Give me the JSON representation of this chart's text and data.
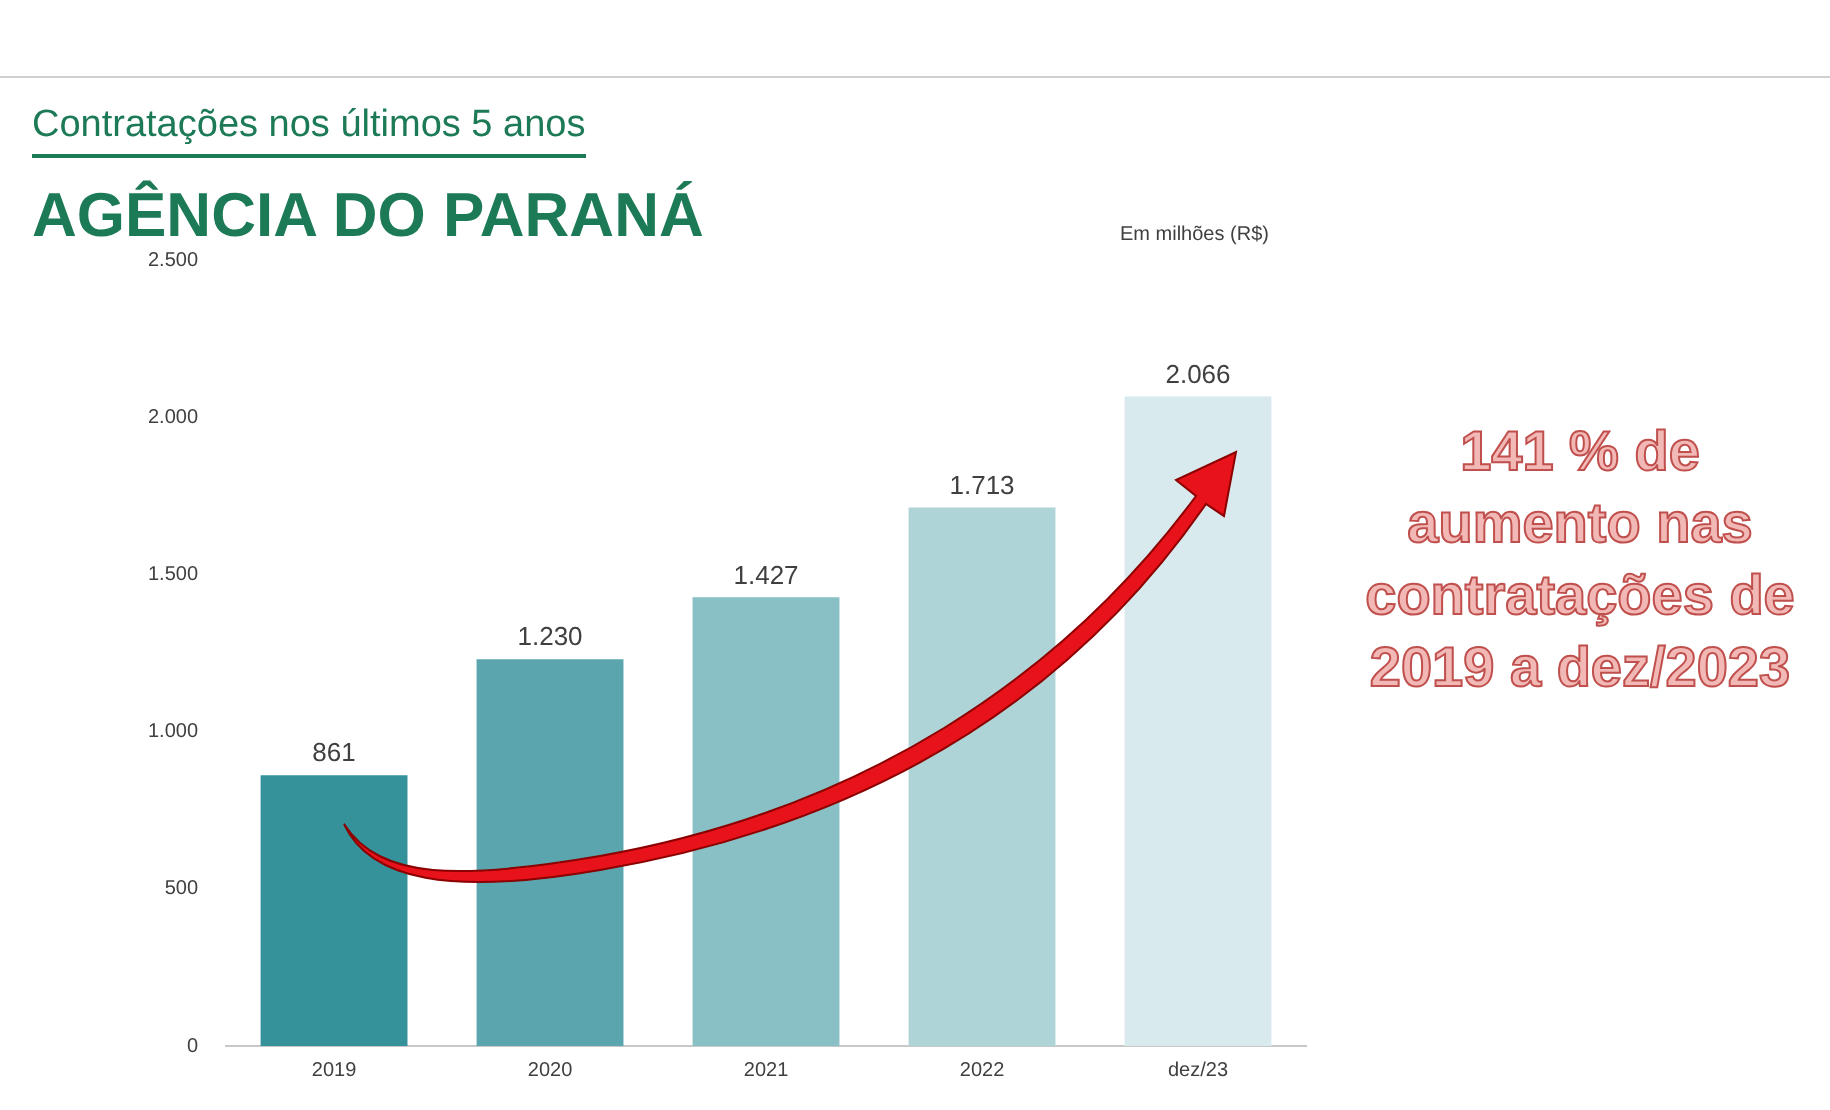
{
  "chart_data": {
    "type": "bar",
    "title": "AGÊNCIA DO PARANÁ",
    "subtitle": "Contratações nos últimos 5 anos",
    "categories": [
      "2019",
      "2020",
      "2021",
      "2022",
      "dez/23"
    ],
    "values": [
      861,
      1230,
      1427,
      1713,
      2066
    ],
    "colors": [
      "#35929b",
      "#5ba6ae",
      "#89c0c6",
      "#afd4d8",
      "#d8eaee"
    ],
    "ylim": [
      0,
      2500
    ],
    "yticks": [
      {
        "value": 0,
        "label": "0"
      },
      {
        "value": 500,
        "label": "500"
      },
      {
        "value": 1000,
        "label": "1.000"
      },
      {
        "value": 1500,
        "label": "1.500"
      },
      {
        "value": 2000,
        "label": "2.000"
      },
      {
        "value": 2500,
        "label": "2.500"
      }
    ],
    "grid": false,
    "value_labels": [
      "861",
      "1.230",
      "1.427",
      "1.713",
      "2.066"
    ],
    "annotations": [
      "Em milhões (R$)",
      "141 % de aumento nas contratações de 2019 a dez/2023"
    ]
  }
}
